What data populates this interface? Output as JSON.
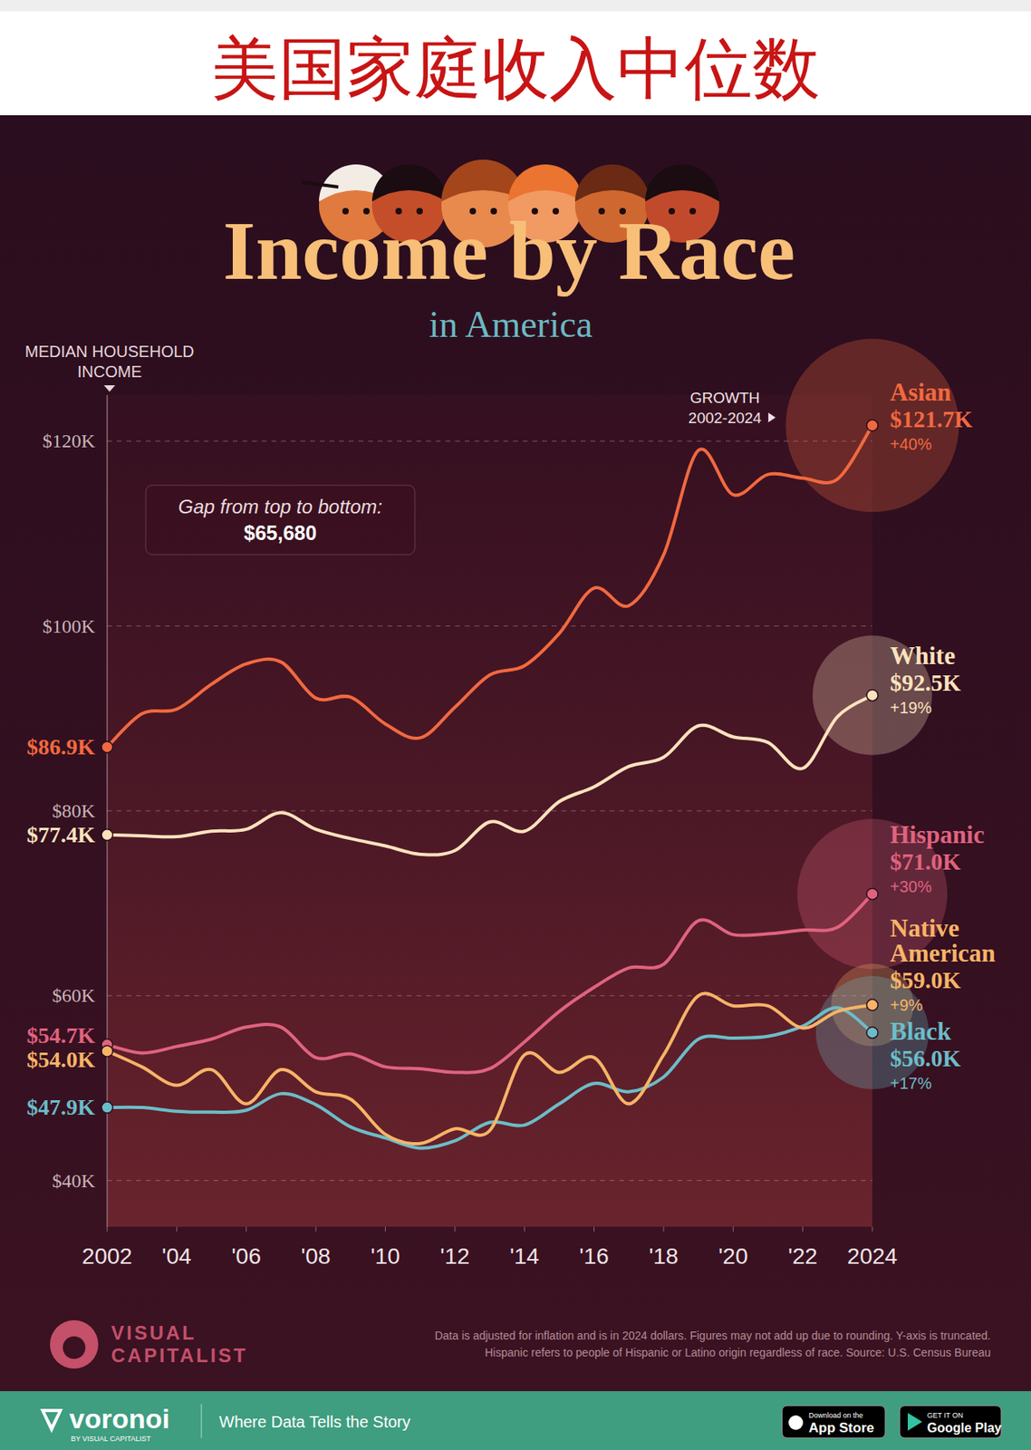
{
  "header": {
    "title": "美国家庭收入中位数"
  },
  "chart_data": {
    "type": "line",
    "title": "Income by Race",
    "subtitle": "in America",
    "y_label": "MEDIAN HOUSEHOLD INCOME",
    "growth_heading": "GROWTH 2002-2024",
    "annotation": {
      "text": "Gap from top to bottom:",
      "value_text": "$65,680"
    },
    "x": [
      2002,
      2003,
      2004,
      2005,
      2006,
      2007,
      2008,
      2009,
      2010,
      2011,
      2012,
      2013,
      2014,
      2015,
      2016,
      2017,
      2018,
      2019,
      2020,
      2021,
      2022,
      2023,
      2024
    ],
    "xlim": [
      2002,
      2024
    ],
    "xticks": [
      2002,
      {
        "value": 2004,
        "label": "'04"
      },
      {
        "value": 2006,
        "label": "'06"
      },
      {
        "value": 2008,
        "label": "'08"
      },
      {
        "value": 2010,
        "label": "'10"
      },
      {
        "value": 2012,
        "label": "'12"
      },
      {
        "value": 2014,
        "label": "'14"
      },
      {
        "value": 2016,
        "label": "'16"
      },
      {
        "value": 2018,
        "label": "'18"
      },
      {
        "value": 2020,
        "label": "'20"
      },
      {
        "value": 2022,
        "label": "'22"
      },
      2024
    ],
    "ylim": [
      35000,
      125000
    ],
    "yticks": [
      {
        "value": 40000,
        "label": "$40K"
      },
      {
        "value": 60000,
        "label": "$60K"
      },
      {
        "value": 80000,
        "label": "$80K"
      },
      {
        "value": 100000,
        "label": "$100K"
      },
      {
        "value": 120000,
        "label": "$120K"
      }
    ],
    "grid": true,
    "series": [
      {
        "name": "Asian",
        "color": "#f2693f",
        "values": [
          86900,
          90500,
          91000,
          93700,
          95900,
          96100,
          92200,
          92300,
          89400,
          87900,
          91200,
          94700,
          95700,
          99200,
          104100,
          102200,
          107700,
          119000,
          114200,
          116400,
          116000,
          115900,
          121700
        ],
        "value_labels": [
          "$86.9K",
          null,
          null,
          null,
          null,
          null,
          null,
          null,
          null,
          null,
          null,
          null,
          null,
          null,
          null,
          null,
          null,
          null,
          null,
          null,
          null,
          null,
          "$121.7K"
        ],
        "growth": 40,
        "growth_label": "+40%"
      },
      {
        "name": "White",
        "color": "#fde2bd",
        "values": [
          77400,
          77300,
          77200,
          77800,
          78000,
          79800,
          78000,
          77000,
          76200,
          75300,
          75700,
          78800,
          77800,
          81000,
          82600,
          84800,
          85800,
          89200,
          88000,
          87400,
          84600,
          90200,
          92500
        ],
        "value_labels": [
          "$77.4K",
          null,
          null,
          null,
          null,
          null,
          null,
          null,
          null,
          null,
          null,
          null,
          null,
          null,
          null,
          null,
          null,
          null,
          null,
          null,
          null,
          null,
          "$92.5K"
        ],
        "growth": 19,
        "growth_label": "+19%"
      },
      {
        "name": "Hispanic",
        "color": "#e0637f",
        "values": [
          54700,
          53800,
          54500,
          55300,
          56600,
          56600,
          53300,
          53700,
          52300,
          52100,
          51700,
          52100,
          55000,
          58300,
          60900,
          63000,
          63400,
          68100,
          66600,
          66700,
          67100,
          67400,
          71000
        ],
        "value_labels": [
          "$54.7K",
          null,
          null,
          null,
          null,
          null,
          null,
          null,
          null,
          null,
          null,
          null,
          null,
          null,
          null,
          null,
          null,
          null,
          null,
          null,
          null,
          null,
          "$71.0K"
        ],
        "growth": 30,
        "growth_label": "+30%"
      },
      {
        "name": "Native American",
        "color": "#f7b467",
        "values": [
          54000,
          52300,
          50300,
          52000,
          48300,
          52000,
          49600,
          48800,
          45000,
          44000,
          45600,
          45400,
          53600,
          51700,
          53300,
          48300,
          53600,
          60000,
          58900,
          58900,
          56500,
          58300,
          59000
        ],
        "value_labels": [
          "$54.0K",
          null,
          null,
          null,
          null,
          null,
          null,
          null,
          null,
          null,
          null,
          null,
          null,
          null,
          null,
          null,
          null,
          null,
          null,
          null,
          null,
          null,
          "$59.0K"
        ],
        "growth": 9,
        "growth_label": "+9%"
      },
      {
        "name": "Black",
        "color": "#6bbdc8",
        "values": [
          47900,
          47900,
          47500,
          47400,
          47600,
          49400,
          48200,
          45800,
          44600,
          43500,
          44300,
          46300,
          46000,
          48300,
          50500,
          49600,
          51200,
          55300,
          55400,
          55600,
          56700,
          58700,
          56000
        ],
        "value_labels": [
          "$47.9K",
          null,
          null,
          null,
          null,
          null,
          null,
          null,
          null,
          null,
          null,
          null,
          null,
          null,
          null,
          null,
          null,
          null,
          null,
          null,
          null,
          null,
          "$56.0K"
        ],
        "growth": 17,
        "growth_label": "+17%"
      }
    ],
    "notes": [
      "Data is adjusted for inflation and is in 2024 dollars. Figures may not add up due to rounding. Y-axis is truncated.",
      "Hispanic refers to people of Hispanic or Latino origin regardless of race. Source: U.S. Census Bureau"
    ]
  },
  "footer": {
    "brand": "VISUAL CAPITALIST",
    "voronoi": "voronoi",
    "voronoi_by": "BY VISUAL CAPITALIST",
    "tagline": "Where Data Tells the Story",
    "app_store": [
      "Download on the",
      "App Store"
    ],
    "google_play": [
      "GET IT ON",
      "Google Play"
    ]
  }
}
